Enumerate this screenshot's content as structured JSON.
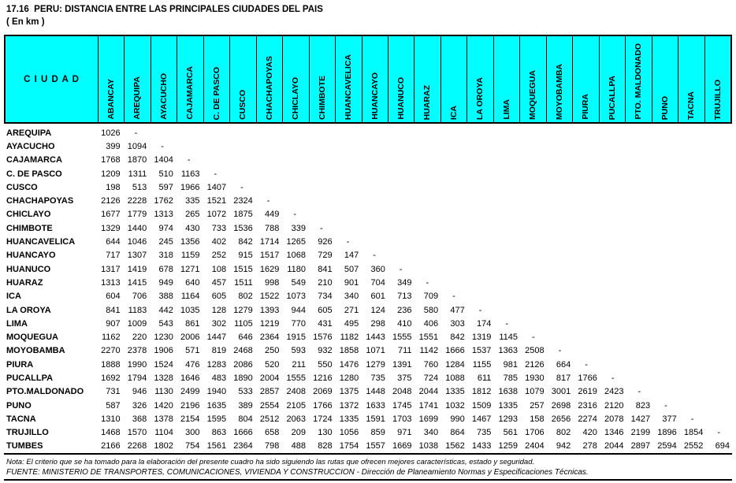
{
  "page": {
    "title": "17.16  PERU: DISTANCIA ENTRE LAS PRINCIPALES CIUDADES DEL PAIS",
    "subtitle": "( En km )"
  },
  "table": {
    "corner_label": "C I U D A D",
    "header_bg": "#00FFFF",
    "columns": [
      "ABANCAY",
      "AREQUIPA",
      "AYACUCHO",
      "CAJAMARCA",
      "C. DE PASCO",
      "CUSCO",
      "CHACHAPOYAS",
      "CHICLAYO",
      "CHIMBOTE",
      "HUANCAVELICA",
      "HUANCAYO",
      "HUANUCO",
      "HUARAZ",
      "ICA",
      "LA OROYA",
      "LIMA",
      "MOQUEGUA",
      "MOYOBAMBA",
      "PIURA",
      "PUCALLPA",
      "PTO. MALDONADO",
      "PUNO",
      "TACNA",
      "TRUJILLO"
    ],
    "rows": [
      {
        "label": "AREQUIPA",
        "values": [
          "1026",
          "-"
        ]
      },
      {
        "label": "AYACUCHO",
        "values": [
          "399",
          "1094",
          "-"
        ]
      },
      {
        "label": "CAJAMARCA",
        "values": [
          "1768",
          "1870",
          "1404",
          "-"
        ]
      },
      {
        "label": "C. DE PASCO",
        "values": [
          "1209",
          "1311",
          "510",
          "1163",
          "-"
        ]
      },
      {
        "label": "CUSCO",
        "values": [
          "198",
          "513",
          "597",
          "1966",
          "1407",
          "-"
        ]
      },
      {
        "label": "CHACHAPOYAS",
        "values": [
          "2126",
          "2228",
          "1762",
          "335",
          "1521",
          "2324",
          "-"
        ]
      },
      {
        "label": "CHICLAYO",
        "values": [
          "1677",
          "1779",
          "1313",
          "265",
          "1072",
          "1875",
          "449",
          "-"
        ]
      },
      {
        "label": "CHIMBOTE",
        "values": [
          "1329",
          "1440",
          "974",
          "430",
          "733",
          "1536",
          "788",
          "339",
          "-"
        ]
      },
      {
        "label": "HUANCAVELICA",
        "values": [
          "644",
          "1046",
          "245",
          "1356",
          "402",
          "842",
          "1714",
          "1265",
          "926",
          "-"
        ]
      },
      {
        "label": "HUANCAYO",
        "values": [
          "717",
          "1307",
          "318",
          "1159",
          "252",
          "915",
          "1517",
          "1068",
          "729",
          "147",
          "-"
        ]
      },
      {
        "label": "HUANUCO",
        "values": [
          "1317",
          "1419",
          "678",
          "1271",
          "108",
          "1515",
          "1629",
          "1180",
          "841",
          "507",
          "360",
          "-"
        ]
      },
      {
        "label": "HUARAZ",
        "values": [
          "1313",
          "1415",
          "949",
          "640",
          "457",
          "1511",
          "998",
          "549",
          "210",
          "901",
          "704",
          "349",
          "-"
        ]
      },
      {
        "label": "ICA",
        "values": [
          "604",
          "706",
          "388",
          "1164",
          "605",
          "802",
          "1522",
          "1073",
          "734",
          "340",
          "601",
          "713",
          "709",
          "-"
        ]
      },
      {
        "label": "LA OROYA",
        "values": [
          "841",
          "1183",
          "442",
          "1035",
          "128",
          "1279",
          "1393",
          "944",
          "605",
          "271",
          "124",
          "236",
          "580",
          "477",
          "-"
        ]
      },
      {
        "label": "LIMA",
        "values": [
          "907",
          "1009",
          "543",
          "861",
          "302",
          "1105",
          "1219",
          "770",
          "431",
          "495",
          "298",
          "410",
          "406",
          "303",
          "174",
          "-"
        ]
      },
      {
        "label": "MOQUEGUA",
        "values": [
          "1162",
          "220",
          "1230",
          "2006",
          "1447",
          "646",
          "2364",
          "1915",
          "1576",
          "1182",
          "1443",
          "1555",
          "1551",
          "842",
          "1319",
          "1145",
          "-"
        ]
      },
      {
        "label": "MOYOBAMBA",
        "values": [
          "2270",
          "2378",
          "1906",
          "571",
          "819",
          "2468",
          "250",
          "593",
          "932",
          "1858",
          "1071",
          "711",
          "1142",
          "1666",
          "1537",
          "1363",
          "2508",
          "-"
        ]
      },
      {
        "label": "PIURA",
        "values": [
          "1888",
          "1990",
          "1524",
          "476",
          "1283",
          "2086",
          "520",
          "211",
          "550",
          "1476",
          "1279",
          "1391",
          "760",
          "1284",
          "1155",
          "981",
          "2126",
          "664",
          "-"
        ]
      },
      {
        "label": "PUCALLPA",
        "values": [
          "1692",
          "1794",
          "1328",
          "1646",
          "483",
          "1890",
          "2004",
          "1555",
          "1216",
          "1280",
          "735",
          "375",
          "724",
          "1088",
          "611",
          "785",
          "1930",
          "817",
          "1766",
          "-"
        ]
      },
      {
        "label": "PTO.MALDONADO",
        "values": [
          "731",
          "946",
          "1130",
          "2499",
          "1940",
          "533",
          "2857",
          "2408",
          "2069",
          "1375",
          "1448",
          "2048",
          "2044",
          "1335",
          "1812",
          "1638",
          "1079",
          "3001",
          "2619",
          "2423",
          "-"
        ]
      },
      {
        "label": "PUNO",
        "values": [
          "587",
          "326",
          "1420",
          "2196",
          "1635",
          "389",
          "2554",
          "2105",
          "1766",
          "1372",
          "1633",
          "1745",
          "1741",
          "1032",
          "1509",
          "1335",
          "257",
          "2698",
          "2316",
          "2120",
          "823",
          "-"
        ]
      },
      {
        "label": "TACNA",
        "values": [
          "1310",
          "368",
          "1378",
          "2154",
          "1595",
          "804",
          "2512",
          "2063",
          "1724",
          "1335",
          "1591",
          "1703",
          "1699",
          "990",
          "1467",
          "1293",
          "158",
          "2656",
          "2274",
          "2078",
          "1427",
          "377",
          "-"
        ]
      },
      {
        "label": "TRUJILLO",
        "values": [
          "1468",
          "1570",
          "1104",
          "300",
          "863",
          "1666",
          "658",
          "209",
          "130",
          "1056",
          "859",
          "971",
          "340",
          "864",
          "735",
          "561",
          "1706",
          "802",
          "420",
          "1346",
          "2199",
          "1896",
          "1854",
          "-"
        ]
      },
      {
        "label": "TUMBES",
        "values": [
          "2166",
          "2268",
          "1802",
          "754",
          "1561",
          "2364",
          "798",
          "488",
          "828",
          "1754",
          "1557",
          "1669",
          "1038",
          "1562",
          "1433",
          "1259",
          "2404",
          "942",
          "278",
          "2044",
          "2897",
          "2594",
          "2552",
          "694"
        ]
      }
    ]
  },
  "notes": {
    "nota": "Nota: El criterio que se ha tomado para la elaboración del presente cuadro ha sido siguiendo las rutas que ofrecen mejores características, estado y seguridad.",
    "fuente": "FUENTE: MINISTERIO DE TRANSPORTES, COMUNICACIONES, VIVIENDA Y CONSTRUCCION - Dirección de Planeamiento Normas y Especificaciones Técnicas."
  }
}
